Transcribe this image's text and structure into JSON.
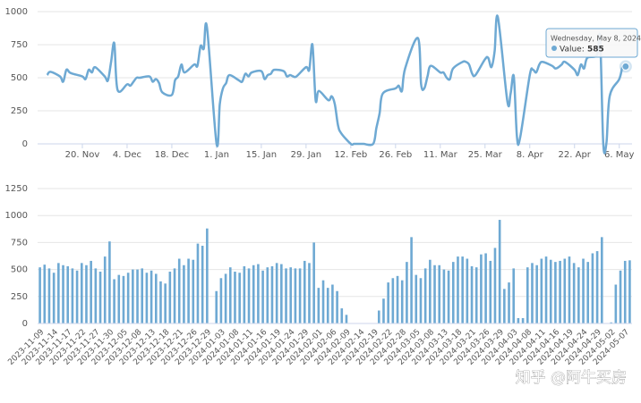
{
  "chart_data": [
    {
      "type": "line",
      "color": "#6ea9d3",
      "grid": true,
      "xlim": [
        "2023-11-06",
        "2024-05-10"
      ],
      "ylim": [
        0,
        1000
      ],
      "yticks": [
        0,
        250,
        500,
        750,
        1000
      ],
      "xticks": [
        {
          "value": "2023-11-20",
          "label": "20. Nov"
        },
        {
          "value": "2023-12-04",
          "label": "4. Dec"
        },
        {
          "value": "2023-12-18",
          "label": "18. Dec"
        },
        {
          "value": "2024-01-01",
          "label": "1. Jan"
        },
        {
          "value": "2024-01-15",
          "label": "15. Jan"
        },
        {
          "value": "2024-01-29",
          "label": "29. Jan"
        },
        {
          "value": "2024-02-12",
          "label": "12. Feb"
        },
        {
          "value": "2024-02-26",
          "label": "26. Feb"
        },
        {
          "value": "2024-03-11",
          "label": "11. Mar"
        },
        {
          "value": "2024-03-25",
          "label": "25. Mar"
        },
        {
          "value": "2024-04-08",
          "label": "8. Apr"
        },
        {
          "value": "2024-04-22",
          "label": "22. Apr"
        },
        {
          "value": "2024-05-06",
          "label": "6. May"
        }
      ],
      "x": [
        "2023-11-09",
        "2023-11-10",
        "2023-11-13",
        "2023-11-14",
        "2023-11-15",
        "2023-11-16",
        "2023-11-17",
        "2023-11-20",
        "2023-11-21",
        "2023-11-22",
        "2023-11-23",
        "2023-11-24",
        "2023-11-27",
        "2023-11-28",
        "2023-11-29",
        "2023-11-30",
        "2023-12-01",
        "2023-12-04",
        "2023-12-05",
        "2023-12-06",
        "2023-12-07",
        "2023-12-08",
        "2023-12-11",
        "2023-12-12",
        "2023-12-13",
        "2023-12-14",
        "2023-12-15",
        "2023-12-18",
        "2023-12-19",
        "2023-12-20",
        "2023-12-21",
        "2023-12-22",
        "2023-12-25",
        "2023-12-26",
        "2023-12-27",
        "2023-12-28",
        "2023-12-29",
        "2024-01-01",
        "2024-01-02",
        "2024-01-03",
        "2024-01-04",
        "2024-01-05",
        "2024-01-08",
        "2024-01-09",
        "2024-01-10",
        "2024-01-11",
        "2024-01-12",
        "2024-01-15",
        "2024-01-16",
        "2024-01-17",
        "2024-01-18",
        "2024-01-19",
        "2024-01-22",
        "2024-01-23",
        "2024-01-24",
        "2024-01-25",
        "2024-01-26",
        "2024-01-29",
        "2024-01-30",
        "2024-01-31",
        "2024-02-01",
        "2024-02-02",
        "2024-02-05",
        "2024-02-06",
        "2024-02-07",
        "2024-02-08",
        "2024-02-09",
        "2024-02-12",
        "2024-02-13",
        "2024-02-14",
        "2024-02-15",
        "2024-02-16",
        "2024-02-19",
        "2024-02-20",
        "2024-02-21",
        "2024-02-22",
        "2024-02-26",
        "2024-02-27",
        "2024-02-28",
        "2024-02-29",
        "2024-03-04",
        "2024-03-05",
        "2024-03-06",
        "2024-03-07",
        "2024-03-08",
        "2024-03-11",
        "2024-03-12",
        "2024-03-13",
        "2024-03-14",
        "2024-03-15",
        "2024-03-18",
        "2024-03-19",
        "2024-03-20",
        "2024-03-21",
        "2024-03-22",
        "2024-03-25",
        "2024-03-26",
        "2024-03-27",
        "2024-03-28",
        "2024-03-29",
        "2024-04-01",
        "2024-04-02",
        "2024-04-03",
        "2024-04-04",
        "2024-04-05",
        "2024-04-08",
        "2024-04-09",
        "2024-04-10",
        "2024-04-11",
        "2024-04-12",
        "2024-04-15",
        "2024-04-16",
        "2024-04-17",
        "2024-04-18",
        "2024-04-19",
        "2024-04-22",
        "2024-04-23",
        "2024-04-24",
        "2024-04-25",
        "2024-04-26",
        "2024-04-29",
        "2024-04-30",
        "2024-05-01",
        "2024-05-02",
        "2024-05-03",
        "2024-05-06",
        "2024-05-07",
        "2024-05-08"
      ],
      "values": [
        520,
        545,
        510,
        470,
        560,
        540,
        530,
        510,
        490,
        560,
        540,
        580,
        510,
        480,
        620,
        760,
        410,
        450,
        440,
        470,
        500,
        500,
        510,
        470,
        490,
        460,
        390,
        370,
        480,
        510,
        600,
        540,
        600,
        590,
        740,
        720,
        880,
        0,
        300,
        420,
        460,
        520,
        480,
        470,
        530,
        510,
        540,
        550,
        490,
        520,
        530,
        560,
        550,
        510,
        520,
        510,
        510,
        580,
        560,
        750,
        330,
        400,
        330,
        360,
        300,
        140,
        80,
        0,
        0,
        0,
        0,
        0,
        0,
        120,
        230,
        380,
        420,
        440,
        400,
        570,
        800,
        450,
        420,
        510,
        590,
        540,
        540,
        500,
        490,
        570,
        620,
        620,
        600,
        530,
        520,
        640,
        650,
        580,
        700,
        960,
        320,
        380,
        510,
        50,
        50,
        520,
        560,
        540,
        600,
        620,
        590,
        570,
        580,
        600,
        620,
        560,
        520,
        600,
        570,
        650,
        670,
        800,
        0,
        10,
        360,
        490,
        580,
        585
      ],
      "tooltip": {
        "date": "Wednesday, May 8, 2024",
        "label": "Value:",
        "value": 585
      }
    },
    {
      "type": "bar",
      "color": "#6ea9d3",
      "grid": true,
      "ylim": [
        0,
        1250
      ],
      "yticks": [
        0,
        250,
        500,
        750,
        1000,
        1250
      ],
      "categories": [
        "2023-11-09",
        null,
        null,
        "2023-11-14",
        null,
        null,
        "2023-11-17",
        null,
        null,
        "2023-11-22",
        null,
        null,
        "2023-11-27",
        null,
        null,
        "2023-11-30",
        null,
        null,
        "2023-12-05",
        null,
        null,
        "2023-12-08",
        null,
        null,
        "2023-12-13",
        null,
        null,
        "2023-12-18",
        null,
        null,
        "2023-12-21",
        null,
        null,
        "2023-12-26",
        null,
        null,
        "2023-12-29",
        null,
        null,
        "2024-01-03",
        null,
        null,
        "2024-01-08",
        null,
        null,
        "2024-01-11",
        null,
        null,
        "2024-01-16",
        null,
        null,
        "2024-01-19",
        null,
        null,
        "2024-01-24",
        null,
        null,
        "2024-01-29",
        null,
        null,
        "2024-02-01",
        null,
        null,
        "2024-02-06",
        null,
        null,
        "2024-02-09",
        null,
        null,
        "2024-02-14",
        null,
        null,
        "2024-02-19",
        null,
        null,
        "2024-02-22",
        null,
        null,
        "2024-02-28",
        null,
        null,
        "2024-03-05",
        null,
        null,
        "2024-03-08",
        null,
        null,
        "2024-03-13",
        null,
        null,
        "2024-03-18",
        null,
        null,
        "2024-03-21",
        null,
        null,
        "2024-03-26",
        null,
        null,
        "2024-03-29",
        null,
        null,
        "2024-04-03",
        null,
        null,
        "2024-04-08",
        null,
        null,
        "2024-04-11",
        null,
        null,
        "2024-04-16",
        null,
        null,
        "2024-04-19",
        null,
        null,
        "2024-04-24",
        null,
        null,
        "2024-04-29",
        null,
        null,
        "2024-05-02",
        null,
        null,
        "2024-05-07",
        null
      ],
      "values": [
        520,
        545,
        510,
        470,
        560,
        540,
        530,
        510,
        490,
        560,
        540,
        580,
        510,
        480,
        620,
        760,
        410,
        450,
        440,
        470,
        500,
        500,
        510,
        470,
        490,
        460,
        390,
        370,
        480,
        510,
        600,
        540,
        600,
        590,
        740,
        720,
        880,
        0,
        300,
        420,
        460,
        520,
        480,
        470,
        530,
        510,
        540,
        550,
        490,
        520,
        530,
        560,
        550,
        510,
        520,
        510,
        510,
        580,
        560,
        750,
        330,
        400,
        330,
        360,
        300,
        140,
        80,
        0,
        0,
        0,
        0,
        0,
        0,
        120,
        230,
        380,
        420,
        440,
        400,
        570,
        800,
        450,
        420,
        510,
        590,
        540,
        540,
        500,
        490,
        570,
        620,
        620,
        600,
        530,
        520,
        640,
        650,
        580,
        700,
        960,
        320,
        380,
        510,
        50,
        50,
        520,
        560,
        540,
        600,
        620,
        590,
        570,
        580,
        600,
        620,
        560,
        520,
        600,
        570,
        650,
        670,
        800,
        0,
        10,
        360,
        490,
        580,
        585
      ],
      "watermark": "知乎 @阿牛买房"
    }
  ]
}
